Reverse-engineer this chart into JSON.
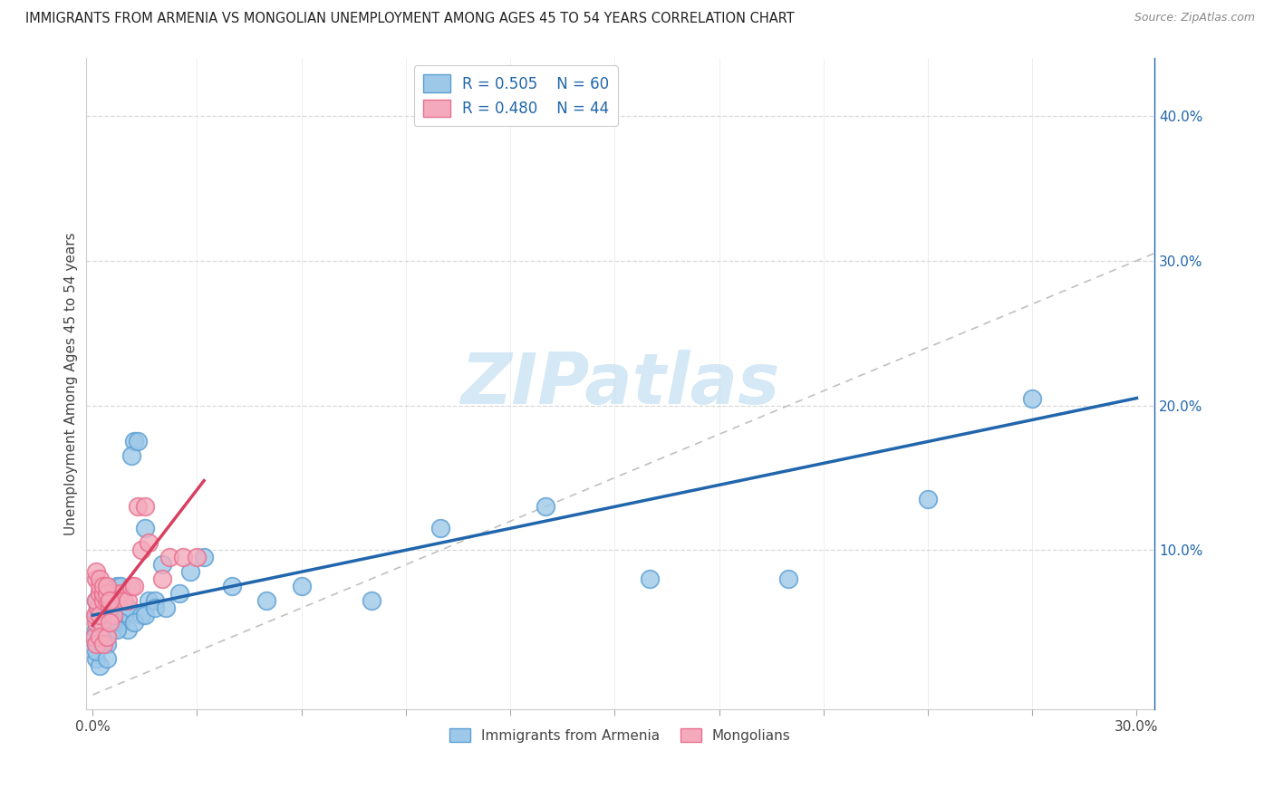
{
  "title": "IMMIGRANTS FROM ARMENIA VS MONGOLIAN UNEMPLOYMENT AMONG AGES 45 TO 54 YEARS CORRELATION CHART",
  "source": "Source: ZipAtlas.com",
  "ylabel": "Unemployment Among Ages 45 to 54 years",
  "xlim": [
    -0.002,
    0.305
  ],
  "ylim": [
    -0.01,
    0.44
  ],
  "x_ticks": [
    0.0,
    0.03,
    0.06,
    0.09,
    0.12,
    0.15,
    0.18,
    0.21,
    0.24,
    0.27,
    0.3
  ],
  "x_tick_labels_show": [
    "0.0%",
    "",
    "",
    "",
    "",
    "",
    "",
    "",
    "",
    "",
    "30.0%"
  ],
  "y_ticks_right": [
    0.1,
    0.2,
    0.3,
    0.4
  ],
  "y_tick_labels_right": [
    "10.0%",
    "20.0%",
    "30.0%",
    "40.0%"
  ],
  "blue_scatter_face": "#9ec8e8",
  "blue_scatter_edge": "#5b9fd4",
  "pink_scatter_face": "#f4aabc",
  "pink_scatter_edge": "#e87090",
  "blue_line_color": "#2166ac",
  "pink_line_color": "#d94060",
  "diag_color": "#c0c0c0",
  "grid_color": "#d8d8d8",
  "watermark_color": "#d4e8f5",
  "right_axis_color": "#2166ac",
  "arm_trend_x": [
    0.0,
    0.3
  ],
  "arm_trend_y": [
    0.055,
    0.205
  ],
  "mong_trend_x": [
    0.0,
    0.032
  ],
  "mong_trend_y": [
    0.048,
    0.148
  ],
  "arm_points_x": [
    0.0008,
    0.0015,
    0.001,
    0.0025,
    0.002,
    0.003,
    0.004,
    0.005,
    0.003,
    0.006,
    0.007,
    0.008,
    0.009,
    0.01,
    0.012,
    0.011,
    0.013,
    0.015,
    0.014,
    0.016,
    0.018,
    0.02,
    0.001,
    0.002,
    0.001,
    0.003,
    0.004,
    0.005,
    0.006,
    0.008,
    0.01,
    0.012,
    0.015,
    0.018,
    0.021,
    0.025,
    0.028,
    0.032,
    0.04,
    0.05,
    0.06,
    0.08,
    0.1,
    0.13,
    0.16,
    0.2,
    0.24,
    0.27,
    0.001,
    0.002,
    0.003,
    0.001,
    0.002,
    0.001,
    0.003,
    0.004,
    0.004,
    0.005,
    0.006,
    0.007
  ],
  "arm_points_y": [
    0.04,
    0.06,
    0.065,
    0.05,
    0.07,
    0.055,
    0.065,
    0.07,
    0.06,
    0.065,
    0.075,
    0.075,
    0.055,
    0.06,
    0.175,
    0.165,
    0.175,
    0.115,
    0.055,
    0.065,
    0.065,
    0.09,
    0.045,
    0.04,
    0.035,
    0.04,
    0.045,
    0.055,
    0.045,
    0.05,
    0.045,
    0.05,
    0.055,
    0.06,
    0.06,
    0.07,
    0.085,
    0.095,
    0.075,
    0.065,
    0.075,
    0.065,
    0.115,
    0.13,
    0.08,
    0.08,
    0.135,
    0.205,
    0.055,
    0.045,
    0.035,
    0.025,
    0.02,
    0.03,
    0.04,
    0.035,
    0.025,
    0.05,
    0.05,
    0.045
  ],
  "mong_points_x": [
    0.0005,
    0.001,
    0.0008,
    0.0015,
    0.001,
    0.002,
    0.0025,
    0.002,
    0.003,
    0.003,
    0.004,
    0.004,
    0.005,
    0.005,
    0.006,
    0.006,
    0.007,
    0.008,
    0.009,
    0.01,
    0.011,
    0.012,
    0.013,
    0.015,
    0.001,
    0.002,
    0.003,
    0.004,
    0.005,
    0.001,
    0.001,
    0.002,
    0.002,
    0.003,
    0.003,
    0.004,
    0.004,
    0.005,
    0.014,
    0.016,
    0.02,
    0.022,
    0.026,
    0.03
  ],
  "mong_points_y": [
    0.04,
    0.05,
    0.055,
    0.06,
    0.065,
    0.07,
    0.05,
    0.055,
    0.07,
    0.065,
    0.07,
    0.065,
    0.06,
    0.065,
    0.07,
    0.055,
    0.065,
    0.07,
    0.065,
    0.065,
    0.075,
    0.075,
    0.13,
    0.13,
    0.035,
    0.04,
    0.035,
    0.04,
    0.05,
    0.08,
    0.085,
    0.075,
    0.08,
    0.07,
    0.075,
    0.07,
    0.075,
    0.065,
    0.1,
    0.105,
    0.08,
    0.095,
    0.095,
    0.095
  ]
}
